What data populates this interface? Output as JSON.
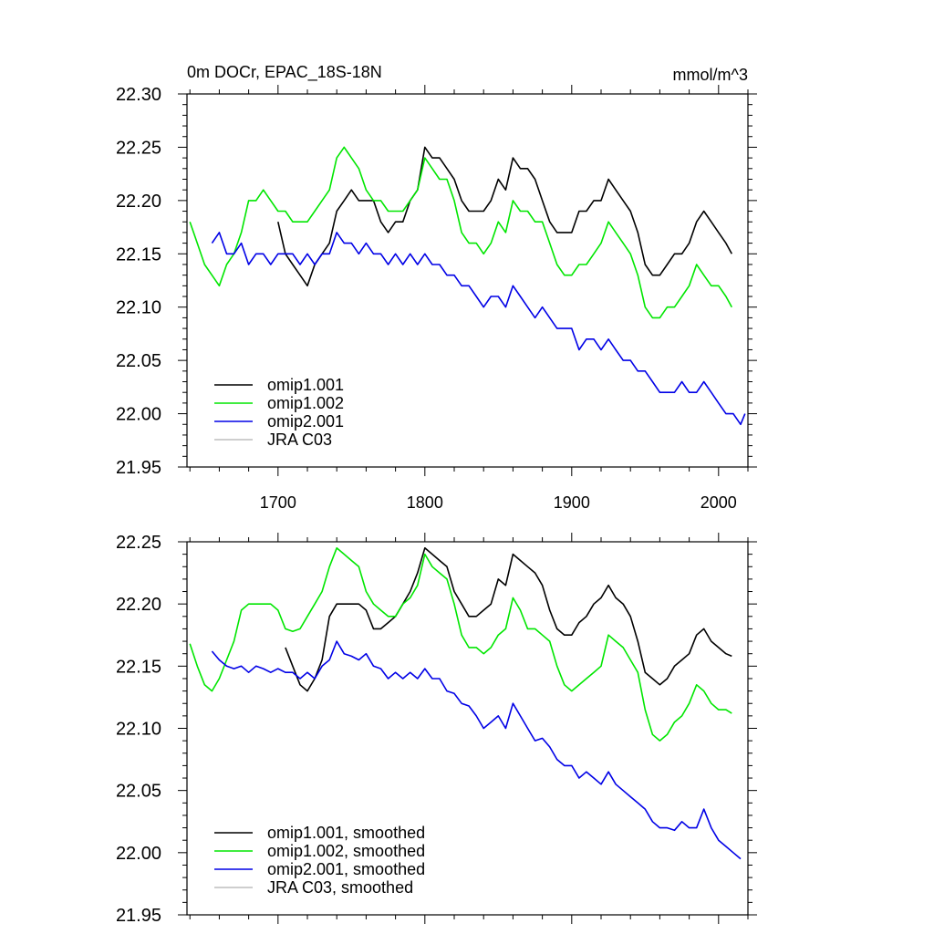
{
  "chart_data": [
    {
      "type": "line",
      "title": "0m DOCr, EPAC_18S-18N",
      "units": "mmol/m^3",
      "xlim": [
        1638,
        2020
      ],
      "ylim": [
        21.95,
        22.3
      ],
      "xticks": [
        1700,
        1800,
        1900,
        2000
      ],
      "xtick_labels": [
        "1700",
        "1800",
        "1900",
        "2000"
      ],
      "yticks": [
        21.95,
        22.0,
        22.05,
        22.1,
        22.15,
        22.2,
        22.25,
        22.3
      ],
      "ytick_labels": [
        "21.95",
        "22.00",
        "22.05",
        "22.10",
        "22.15",
        "22.20",
        "22.25",
        "22.30"
      ],
      "legend_position": "bottom-left",
      "series": [
        {
          "name": "omip1.001",
          "color": "#000000",
          "x": [
            1700,
            1705,
            1710,
            1715,
            1720,
            1725,
            1730,
            1735,
            1740,
            1745,
            1750,
            1755,
            1760,
            1765,
            1770,
            1775,
            1780,
            1785,
            1790,
            1795,
            1800,
            1805,
            1810,
            1815,
            1820,
            1825,
            1830,
            1835,
            1840,
            1845,
            1850,
            1855,
            1860,
            1865,
            1870,
            1875,
            1880,
            1885,
            1890,
            1895,
            1900,
            1905,
            1910,
            1915,
            1920,
            1925,
            1930,
            1935,
            1940,
            1945,
            1950,
            1955,
            1960,
            1965,
            1970,
            1975,
            1980,
            1985,
            1990,
            1995,
            2000,
            2005,
            2009
          ],
          "values": [
            22.18,
            22.15,
            22.14,
            22.13,
            22.12,
            22.14,
            22.15,
            22.16,
            22.19,
            22.2,
            22.21,
            22.2,
            22.2,
            22.2,
            22.18,
            22.17,
            22.18,
            22.18,
            22.2,
            22.21,
            22.25,
            22.24,
            22.24,
            22.23,
            22.22,
            22.2,
            22.19,
            22.19,
            22.19,
            22.2,
            22.22,
            22.21,
            22.24,
            22.23,
            22.23,
            22.22,
            22.2,
            22.18,
            22.17,
            22.17,
            22.17,
            22.19,
            22.19,
            22.2,
            22.2,
            22.22,
            22.21,
            22.2,
            22.19,
            22.17,
            22.14,
            22.13,
            22.13,
            22.14,
            22.15,
            22.15,
            22.16,
            22.18,
            22.19,
            22.18,
            22.17,
            22.16,
            22.15
          ]
        },
        {
          "name": "omip1.002",
          "color": "#00e600",
          "x": [
            1640,
            1645,
            1650,
            1655,
            1660,
            1665,
            1670,
            1675,
            1680,
            1685,
            1690,
            1695,
            1700,
            1705,
            1710,
            1715,
            1720,
            1725,
            1730,
            1735,
            1740,
            1745,
            1750,
            1755,
            1760,
            1765,
            1770,
            1775,
            1780,
            1785,
            1790,
            1795,
            1800,
            1805,
            1810,
            1815,
            1820,
            1825,
            1830,
            1835,
            1840,
            1845,
            1850,
            1855,
            1860,
            1865,
            1870,
            1875,
            1880,
            1885,
            1890,
            1895,
            1900,
            1905,
            1910,
            1915,
            1920,
            1925,
            1930,
            1935,
            1940,
            1945,
            1950,
            1955,
            1960,
            1965,
            1970,
            1975,
            1980,
            1985,
            1990,
            1995,
            2000,
            2005,
            2009
          ],
          "values": [
            22.18,
            22.16,
            22.14,
            22.13,
            22.12,
            22.14,
            22.15,
            22.17,
            22.2,
            22.2,
            22.21,
            22.2,
            22.19,
            22.19,
            22.18,
            22.18,
            22.18,
            22.19,
            22.2,
            22.21,
            22.24,
            22.25,
            22.24,
            22.23,
            22.21,
            22.2,
            22.2,
            22.19,
            22.19,
            22.19,
            22.2,
            22.21,
            22.24,
            22.23,
            22.22,
            22.22,
            22.2,
            22.17,
            22.16,
            22.16,
            22.15,
            22.16,
            22.18,
            22.17,
            22.2,
            22.19,
            22.19,
            22.18,
            22.18,
            22.16,
            22.14,
            22.13,
            22.13,
            22.14,
            22.14,
            22.15,
            22.16,
            22.18,
            22.17,
            22.16,
            22.15,
            22.13,
            22.1,
            22.09,
            22.09,
            22.1,
            22.1,
            22.11,
            22.12,
            22.14,
            22.13,
            22.12,
            22.12,
            22.11,
            22.1
          ]
        },
        {
          "name": "omip2.001",
          "color": "#0000e6",
          "x": [
            1655,
            1660,
            1665,
            1670,
            1675,
            1680,
            1685,
            1690,
            1695,
            1700,
            1705,
            1710,
            1715,
            1720,
            1725,
            1730,
            1735,
            1740,
            1745,
            1750,
            1755,
            1760,
            1765,
            1770,
            1775,
            1780,
            1785,
            1790,
            1795,
            1800,
            1805,
            1810,
            1815,
            1820,
            1825,
            1830,
            1835,
            1840,
            1845,
            1850,
            1855,
            1860,
            1865,
            1870,
            1875,
            1880,
            1885,
            1890,
            1895,
            1900,
            1905,
            1910,
            1915,
            1920,
            1925,
            1930,
            1935,
            1940,
            1945,
            1950,
            1955,
            1960,
            1965,
            1970,
            1975,
            1980,
            1985,
            1990,
            1995,
            2000,
            2005,
            2010,
            2015,
            2018
          ],
          "values": [
            22.16,
            22.17,
            22.15,
            22.15,
            22.16,
            22.14,
            22.15,
            22.15,
            22.14,
            22.15,
            22.15,
            22.15,
            22.14,
            22.15,
            22.14,
            22.15,
            22.15,
            22.17,
            22.16,
            22.16,
            22.15,
            22.16,
            22.15,
            22.15,
            22.14,
            22.15,
            22.14,
            22.15,
            22.14,
            22.15,
            22.14,
            22.14,
            22.13,
            22.13,
            22.12,
            22.12,
            22.11,
            22.1,
            22.11,
            22.11,
            22.1,
            22.12,
            22.11,
            22.1,
            22.09,
            22.1,
            22.09,
            22.08,
            22.08,
            22.08,
            22.06,
            22.07,
            22.07,
            22.06,
            22.07,
            22.06,
            22.05,
            22.05,
            22.04,
            22.04,
            22.03,
            22.02,
            22.02,
            22.02,
            22.03,
            22.02,
            22.02,
            22.03,
            22.02,
            22.01,
            22.0,
            22.0,
            21.99,
            22.0
          ]
        },
        {
          "name": "JRA C03",
          "color": "#bdbdbd",
          "x": [],
          "values": []
        }
      ]
    },
    {
      "type": "line",
      "xlim": [
        1638,
        2020
      ],
      "ylim": [
        21.95,
        22.25
      ],
      "xticks": [
        1700,
        1800,
        1900,
        2000
      ],
      "yticks": [
        21.95,
        22.0,
        22.05,
        22.1,
        22.15,
        22.2,
        22.25
      ],
      "ytick_labels": [
        "21.95",
        "22.00",
        "22.05",
        "22.10",
        "22.15",
        "22.20",
        "22.25"
      ],
      "legend_position": "bottom-left",
      "series": [
        {
          "name": "omip1.001, smoothed",
          "color": "#000000",
          "x": [
            1705,
            1710,
            1715,
            1720,
            1725,
            1730,
            1735,
            1740,
            1745,
            1750,
            1755,
            1760,
            1765,
            1770,
            1775,
            1780,
            1785,
            1790,
            1795,
            1800,
            1805,
            1810,
            1815,
            1820,
            1825,
            1830,
            1835,
            1840,
            1845,
            1850,
            1855,
            1860,
            1865,
            1870,
            1875,
            1880,
            1885,
            1890,
            1895,
            1900,
            1905,
            1910,
            1915,
            1920,
            1925,
            1930,
            1935,
            1940,
            1945,
            1950,
            1955,
            1960,
            1965,
            1970,
            1975,
            1980,
            1985,
            1990,
            1995,
            2000,
            2005,
            2009
          ],
          "values": [
            22.165,
            22.15,
            22.135,
            22.13,
            22.14,
            22.155,
            22.19,
            22.2,
            22.2,
            22.2,
            22.2,
            22.195,
            22.18,
            22.18,
            22.185,
            22.19,
            22.2,
            22.21,
            22.225,
            22.245,
            22.24,
            22.235,
            22.23,
            22.21,
            22.2,
            22.19,
            22.19,
            22.195,
            22.2,
            22.22,
            22.215,
            22.24,
            22.235,
            22.23,
            22.225,
            22.215,
            22.195,
            22.18,
            22.175,
            22.175,
            22.185,
            22.19,
            22.2,
            22.205,
            22.215,
            22.205,
            22.2,
            22.19,
            22.17,
            22.145,
            22.14,
            22.135,
            22.14,
            22.15,
            22.155,
            22.16,
            22.175,
            22.18,
            22.17,
            22.165,
            22.16,
            22.158
          ]
        },
        {
          "name": "omip1.002, smoothed",
          "color": "#00e600",
          "x": [
            1640,
            1645,
            1650,
            1655,
            1660,
            1665,
            1670,
            1675,
            1680,
            1685,
            1690,
            1695,
            1700,
            1705,
            1710,
            1715,
            1720,
            1725,
            1730,
            1735,
            1740,
            1745,
            1750,
            1755,
            1760,
            1765,
            1770,
            1775,
            1780,
            1785,
            1790,
            1795,
            1800,
            1805,
            1810,
            1815,
            1820,
            1825,
            1830,
            1835,
            1840,
            1845,
            1850,
            1855,
            1860,
            1865,
            1870,
            1875,
            1880,
            1885,
            1890,
            1895,
            1900,
            1905,
            1910,
            1915,
            1920,
            1925,
            1930,
            1935,
            1940,
            1945,
            1950,
            1955,
            1960,
            1965,
            1970,
            1975,
            1980,
            1985,
            1990,
            1995,
            2000,
            2005,
            2009
          ],
          "values": [
            22.168,
            22.15,
            22.135,
            22.13,
            22.14,
            22.155,
            22.17,
            22.195,
            22.2,
            22.2,
            22.2,
            22.2,
            22.195,
            22.18,
            22.178,
            22.18,
            22.19,
            22.2,
            22.21,
            22.23,
            22.245,
            22.24,
            22.235,
            22.23,
            22.21,
            22.2,
            22.195,
            22.19,
            22.19,
            22.2,
            22.205,
            22.215,
            22.24,
            22.23,
            22.225,
            22.22,
            22.2,
            22.175,
            22.165,
            22.165,
            22.16,
            22.165,
            22.175,
            22.18,
            22.205,
            22.195,
            22.18,
            22.18,
            22.175,
            22.17,
            22.15,
            22.135,
            22.13,
            22.135,
            22.14,
            22.145,
            22.15,
            22.175,
            22.17,
            22.165,
            22.155,
            22.145,
            22.115,
            22.095,
            22.09,
            22.095,
            22.105,
            22.11,
            22.12,
            22.135,
            22.13,
            22.12,
            22.115,
            22.115,
            22.112
          ]
        },
        {
          "name": "omip2.001, smoothed",
          "color": "#0000e6",
          "x": [
            1655,
            1660,
            1665,
            1670,
            1675,
            1680,
            1685,
            1690,
            1695,
            1700,
            1705,
            1710,
            1715,
            1720,
            1725,
            1730,
            1735,
            1740,
            1745,
            1750,
            1755,
            1760,
            1765,
            1770,
            1775,
            1780,
            1785,
            1790,
            1795,
            1800,
            1805,
            1810,
            1815,
            1820,
            1825,
            1830,
            1835,
            1840,
            1845,
            1850,
            1855,
            1860,
            1865,
            1870,
            1875,
            1880,
            1885,
            1890,
            1895,
            1900,
            1905,
            1910,
            1915,
            1920,
            1925,
            1930,
            1935,
            1940,
            1945,
            1950,
            1955,
            1960,
            1965,
            1970,
            1975,
            1980,
            1985,
            1990,
            1995,
            2000,
            2005,
            2010,
            2015
          ],
          "values": [
            22.162,
            22.155,
            22.15,
            22.148,
            22.15,
            22.145,
            22.15,
            22.148,
            22.145,
            22.148,
            22.145,
            22.145,
            22.14,
            22.145,
            22.14,
            22.15,
            22.155,
            22.17,
            22.16,
            22.158,
            22.155,
            22.16,
            22.15,
            22.148,
            22.14,
            22.145,
            22.14,
            22.145,
            22.14,
            22.148,
            22.14,
            22.14,
            22.13,
            22.128,
            22.12,
            22.118,
            22.11,
            22.1,
            22.105,
            22.11,
            22.1,
            22.12,
            22.11,
            22.1,
            22.09,
            22.092,
            22.085,
            22.075,
            22.07,
            22.07,
            22.06,
            22.065,
            22.06,
            22.055,
            22.065,
            22.055,
            22.05,
            22.045,
            22.04,
            22.035,
            22.025,
            22.02,
            22.02,
            22.018,
            22.025,
            22.02,
            22.02,
            22.035,
            22.02,
            22.01,
            22.005,
            22.0,
            21.995
          ]
        },
        {
          "name": "JRA C03, smoothed",
          "color": "#bdbdbd",
          "x": [],
          "values": []
        }
      ]
    }
  ]
}
